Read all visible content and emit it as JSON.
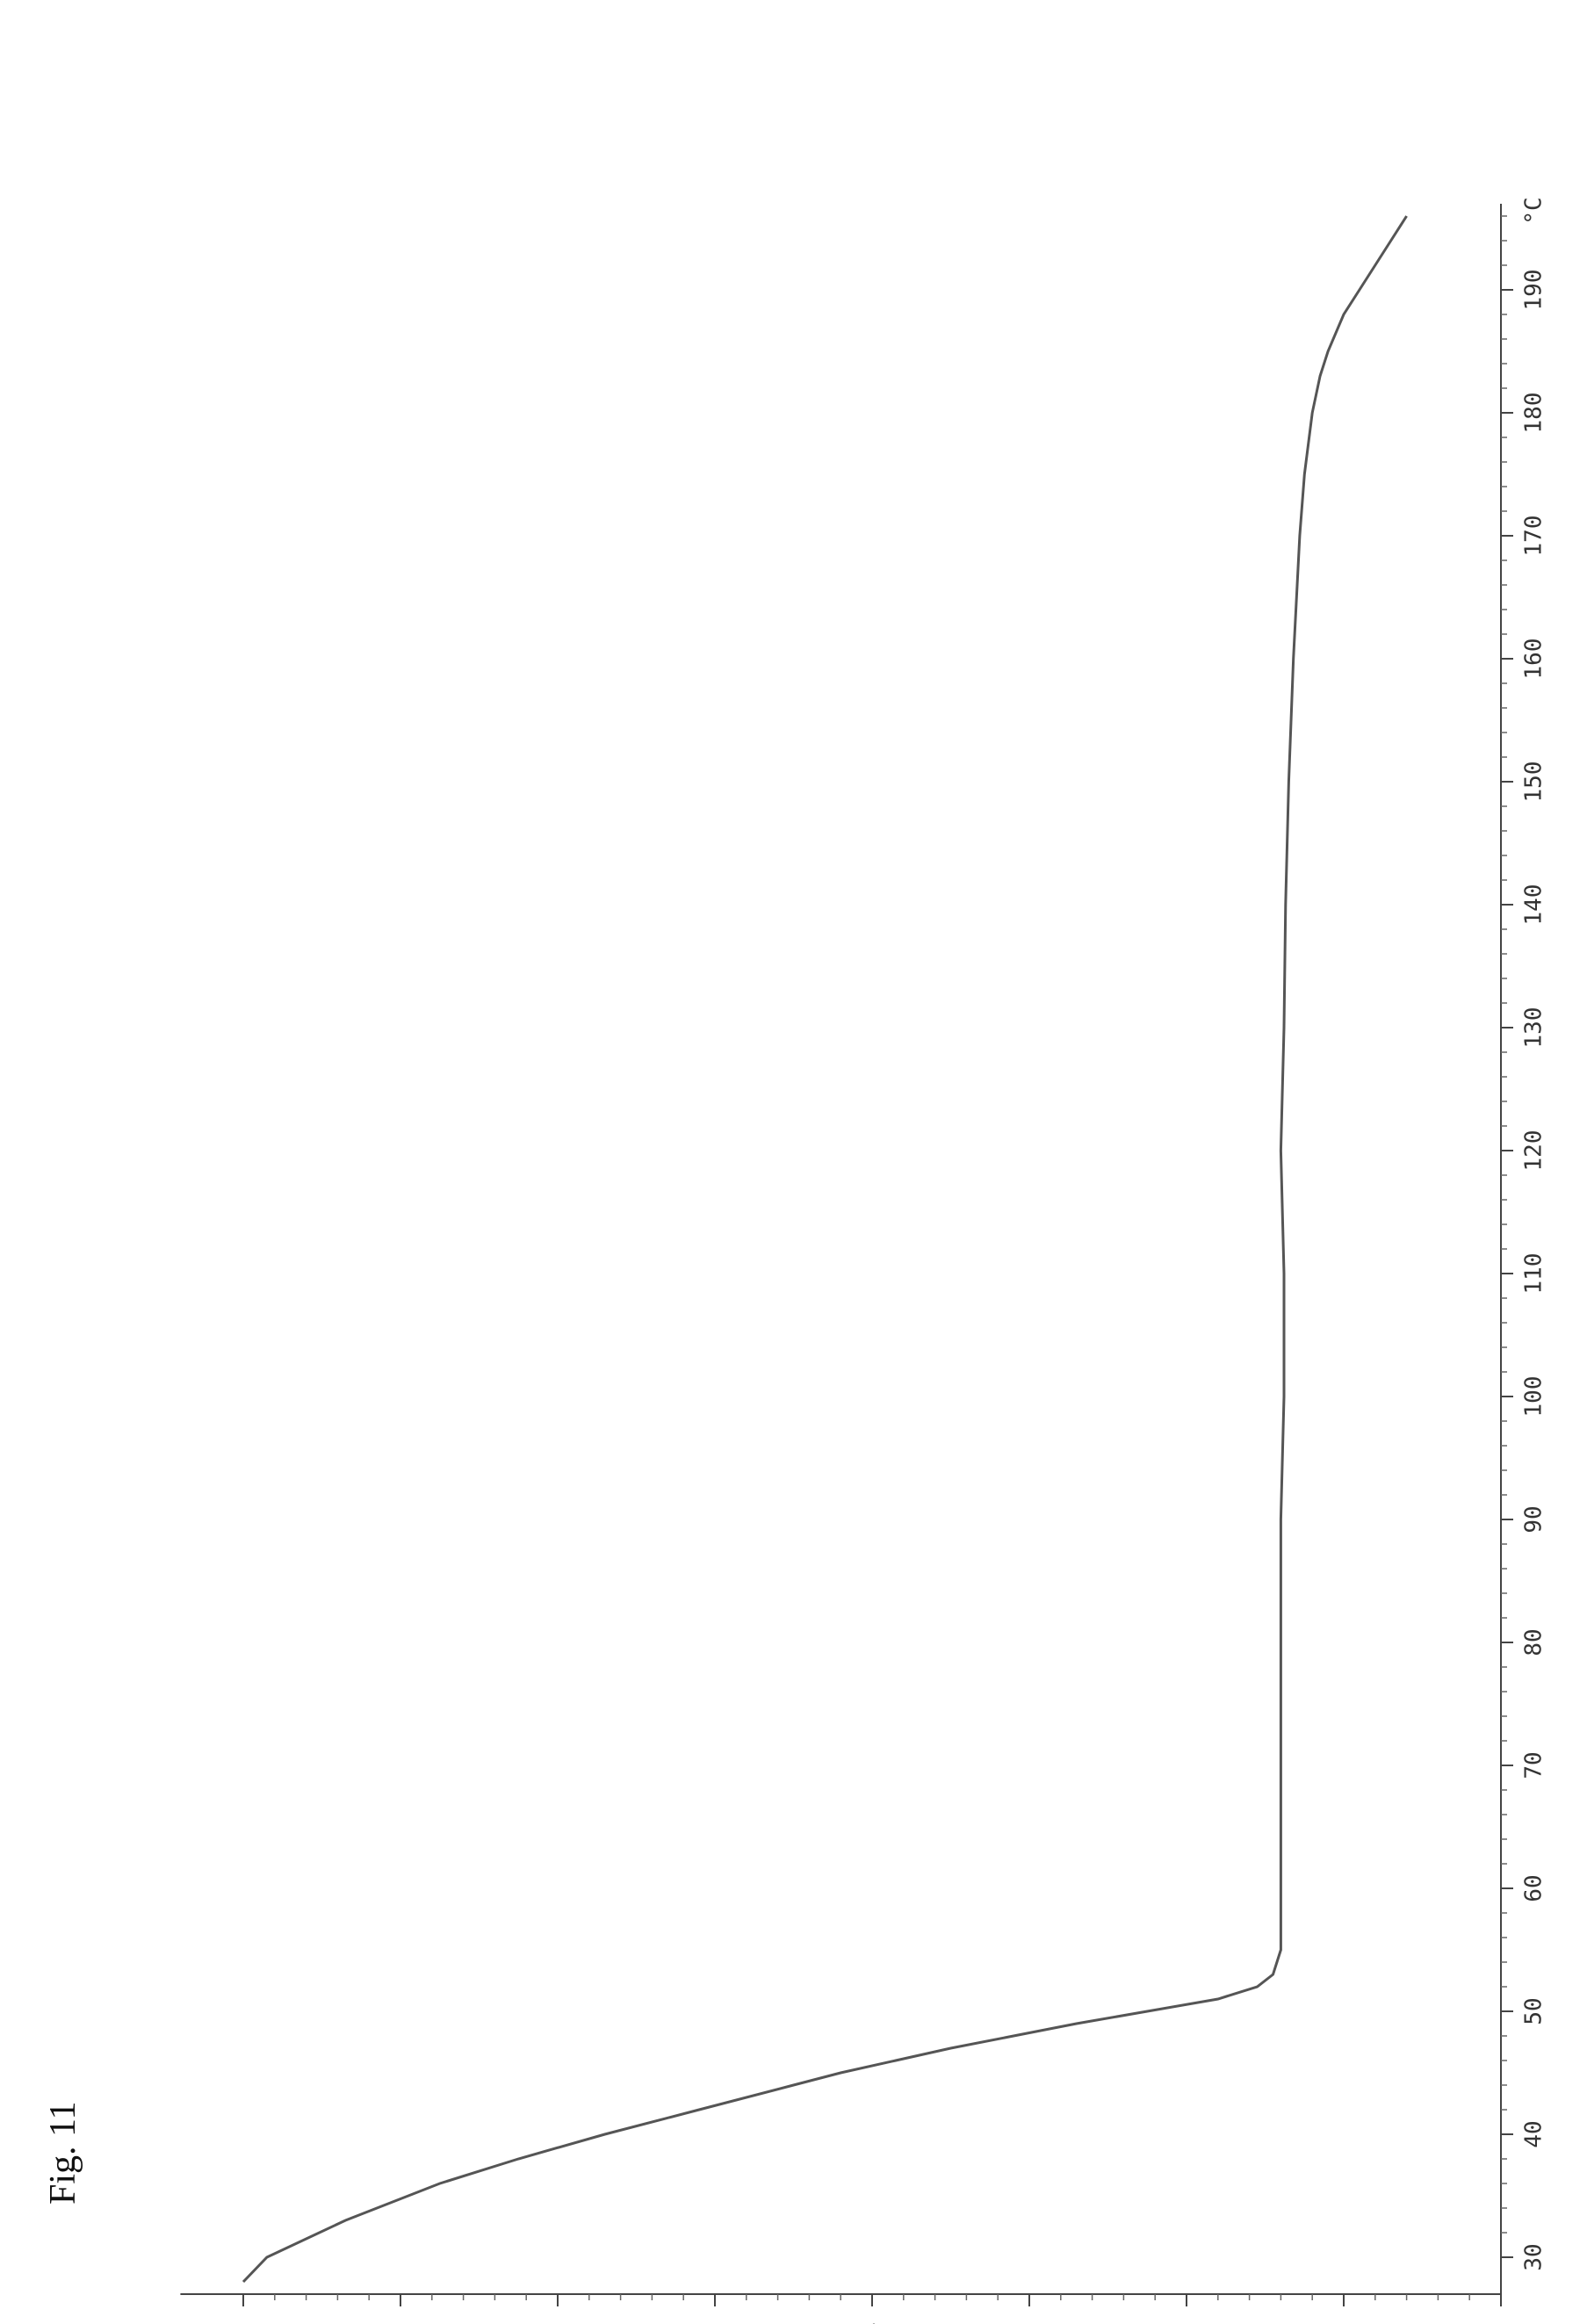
{
  "figure": {
    "label": "Fig. 11"
  },
  "chart_data": {
    "type": "line",
    "title": "",
    "xlabel": "°C",
    "ylabel": "%",
    "xlim": [
      27,
      197
    ],
    "ylim": [
      -8,
      0.4
    ],
    "x_ticks": [
      30,
      40,
      50,
      60,
      70,
      80,
      90,
      100,
      110,
      120,
      130,
      140,
      150,
      160,
      170,
      180,
      190
    ],
    "y_ticks": [
      0,
      -1,
      -2,
      -3,
      -4,
      -5,
      -6,
      -7,
      -8
    ],
    "grid": false,
    "legend": "none",
    "colors": {
      "line": "#555555",
      "axis": "#444444"
    },
    "series": [
      {
        "x": [
          28,
          30,
          33,
          36,
          38,
          40,
          42,
          44,
          45,
          46,
          47,
          48,
          49,
          50,
          51,
          52,
          53,
          55,
          60,
          70,
          80,
          90,
          100,
          110,
          120,
          130,
          140,
          150,
          160,
          170,
          175,
          180,
          183,
          185,
          188,
          190,
          192,
          194,
          196
        ],
        "y": [
          0.0,
          -0.15,
          -0.65,
          -1.25,
          -1.75,
          -2.3,
          -2.9,
          -3.5,
          -3.8,
          -4.15,
          -4.5,
          -4.9,
          -5.3,
          -5.75,
          -6.2,
          -6.45,
          -6.55,
          -6.6,
          -6.6,
          -6.6,
          -6.6,
          -6.6,
          -6.62,
          -6.62,
          -6.6,
          -6.62,
          -6.63,
          -6.65,
          -6.68,
          -6.72,
          -6.75,
          -6.8,
          -6.85,
          -6.9,
          -7.0,
          -7.1,
          -7.2,
          -7.3,
          -7.4
        ]
      }
    ]
  }
}
